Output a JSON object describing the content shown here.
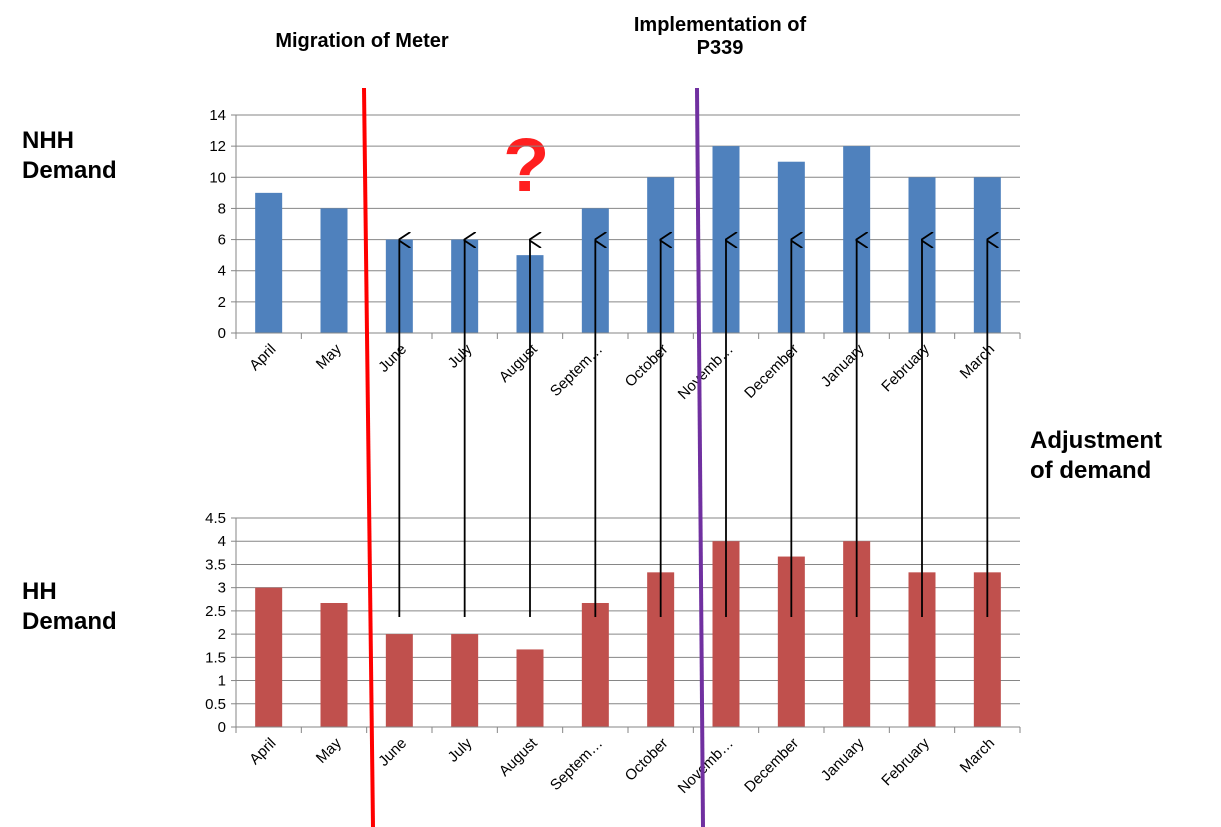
{
  "annotations": {
    "migration": "Migration of Meter",
    "implementation_line1": "Implementation of",
    "implementation_line2": "P339",
    "question_mark": "?",
    "adjustment_line1": "Adjustment",
    "adjustment_line2": "of demand"
  },
  "side_labels": {
    "nhh_line1": "NHH",
    "nhh_line2": "Demand",
    "hh_line1": "HH",
    "hh_line2": "Demand"
  },
  "colors": {
    "nhh_bar": "#4f81bd",
    "hh_bar": "#c0504d",
    "migration_line": "#ff0000",
    "implementation_line": "#7030a0",
    "question_mark": "#ff1f1f",
    "arrow": "#000000",
    "grid": "#868686"
  },
  "arrow_months": [
    "June",
    "July",
    "August",
    "September",
    "October",
    "November",
    "December",
    "January",
    "February",
    "March"
  ],
  "chart_data": [
    {
      "type": "bar",
      "name": "NHH Demand",
      "categories": [
        "April",
        "May",
        "June",
        "July",
        "August",
        "September",
        "October",
        "November",
        "December",
        "January",
        "February",
        "March"
      ],
      "tick_labels": [
        "April",
        "May",
        "June",
        "July",
        "August",
        "Septem…",
        "October",
        "Novemb…",
        "December",
        "January",
        "February",
        "March"
      ],
      "values": [
        9,
        8,
        6,
        6,
        5,
        8,
        10,
        12,
        11,
        12,
        10,
        10
      ],
      "ylim": [
        0,
        14
      ],
      "yticks": [
        "0",
        "2",
        "4",
        "6",
        "8",
        "10",
        "12",
        "14"
      ],
      "grid": true,
      "legend": "none"
    },
    {
      "type": "bar",
      "name": "HH Demand",
      "categories": [
        "April",
        "May",
        "June",
        "July",
        "August",
        "September",
        "October",
        "November",
        "December",
        "January",
        "February",
        "March"
      ],
      "tick_labels": [
        "April",
        "May",
        "June",
        "July",
        "August",
        "Septem…",
        "October",
        "Novemb…",
        "December",
        "January",
        "February",
        "March"
      ],
      "values": [
        3,
        2.67,
        2,
        2,
        1.67,
        2.67,
        3.33,
        4,
        3.67,
        4,
        3.33,
        3.33
      ],
      "ylim": [
        0,
        4.5
      ],
      "yticks": [
        "0",
        "0.5",
        "1",
        "1.5",
        "2",
        "2.5",
        "3",
        "3.5",
        "4",
        "4.5"
      ],
      "grid": true,
      "legend": "none"
    }
  ]
}
